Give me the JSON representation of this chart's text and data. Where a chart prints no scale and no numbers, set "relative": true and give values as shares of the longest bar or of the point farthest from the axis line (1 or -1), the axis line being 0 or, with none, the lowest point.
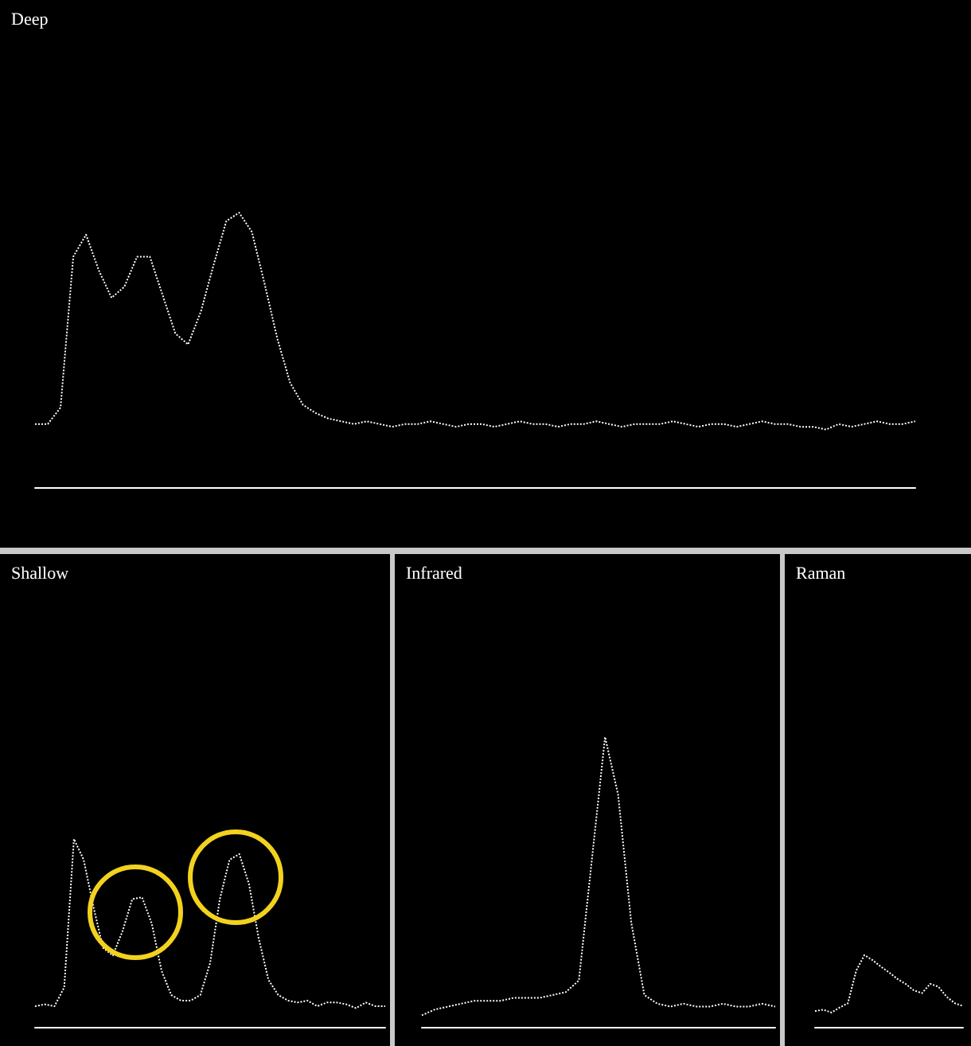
{
  "chart_data": [
    {
      "type": "line",
      "title": "Deep",
      "relative": true,
      "color": "#ffffff",
      "line_style": "dotted",
      "categories": [
        null,
        null,
        null,
        null,
        null,
        null,
        null,
        null,
        null,
        null,
        null,
        null,
        null,
        null,
        null,
        null,
        null,
        null,
        null,
        null,
        null,
        null,
        null,
        null,
        null,
        null,
        null,
        null,
        null,
        null,
        null,
        null,
        null,
        null,
        null,
        null,
        null,
        null,
        null,
        null,
        null,
        null,
        null,
        null,
        null,
        null,
        null,
        null,
        null,
        null,
        null,
        null,
        null,
        null,
        null,
        null,
        null,
        null,
        null,
        null,
        null,
        null,
        null,
        null,
        null,
        null,
        null,
        null,
        null,
        null
      ],
      "values": [
        0.23,
        0.23,
        0.29,
        0.84,
        0.92,
        0.79,
        0.69,
        0.73,
        0.84,
        0.84,
        0.7,
        0.56,
        0.52,
        0.64,
        0.81,
        0.97,
        1,
        0.93,
        0.74,
        0.54,
        0.38,
        0.3,
        0.27,
        0.25,
        0.24,
        0.23,
        0.24,
        0.23,
        0.22,
        0.23,
        0.23,
        0.24,
        0.23,
        0.22,
        0.23,
        0.23,
        0.22,
        0.23,
        0.24,
        0.23,
        0.23,
        0.22,
        0.23,
        0.23,
        0.24,
        0.23,
        0.22,
        0.23,
        0.23,
        0.23,
        0.24,
        0.23,
        0.22,
        0.23,
        0.23,
        0.22,
        0.23,
        0.24,
        0.23,
        0.23,
        0.22,
        0.22,
        0.21,
        0.23,
        0.22,
        0.23,
        0.24,
        0.23,
        0.23,
        0.24
      ]
    },
    {
      "type": "line",
      "title": "Shallow",
      "relative": true,
      "color": "#ffffff",
      "line_style": "dotted",
      "categories": [
        null,
        null,
        null,
        null,
        null,
        null,
        null,
        null,
        null,
        null,
        null,
        null,
        null,
        null,
        null,
        null,
        null,
        null,
        null,
        null,
        null,
        null,
        null,
        null,
        null,
        null,
        null,
        null,
        null,
        null,
        null,
        null,
        null,
        null,
        null,
        null,
        null
      ],
      "values": [
        0.11,
        0.12,
        0.11,
        0.21,
        1,
        0.89,
        0.64,
        0.42,
        0.38,
        0.51,
        0.68,
        0.69,
        0.55,
        0.3,
        0.17,
        0.14,
        0.14,
        0.17,
        0.34,
        0.68,
        0.89,
        0.92,
        0.76,
        0.47,
        0.25,
        0.17,
        0.14,
        0.13,
        0.14,
        0.11,
        0.13,
        0.13,
        0.12,
        0.1,
        0.13,
        0.11,
        0.11
      ]
    },
    {
      "type": "line",
      "title": "Infrared",
      "relative": true,
      "color": "#ffffff",
      "line_style": "dotted",
      "categories": [
        null,
        null,
        null,
        null,
        null,
        null,
        null,
        null,
        null,
        null,
        null,
        null,
        null,
        null,
        null,
        null,
        null,
        null,
        null,
        null,
        null,
        null,
        null,
        null,
        null,
        null,
        null,
        null
      ],
      "values": [
        0.04,
        0.06,
        0.07,
        0.08,
        0.09,
        0.09,
        0.09,
        0.1,
        0.1,
        0.1,
        0.11,
        0.12,
        0.16,
        0.58,
        1,
        0.8,
        0.36,
        0.11,
        0.08,
        0.07,
        0.08,
        0.07,
        0.07,
        0.08,
        0.07,
        0.07,
        0.08,
        0.07
      ]
    },
    {
      "type": "line",
      "title": "Raman",
      "relative": true,
      "color": "#ffffff",
      "line_style": "dotted",
      "categories": [
        null,
        null,
        null,
        null,
        null,
        null,
        null,
        null,
        null,
        null,
        null,
        null,
        null,
        null,
        null,
        null,
        null,
        null,
        null
      ],
      "values": [
        0.22,
        0.24,
        0.2,
        0.27,
        0.33,
        0.78,
        1,
        0.93,
        0.84,
        0.76,
        0.67,
        0.6,
        0.51,
        0.47,
        0.6,
        0.56,
        0.42,
        0.33,
        0.29
      ]
    }
  ]
}
